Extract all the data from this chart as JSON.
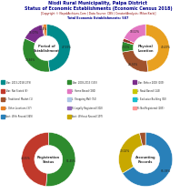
{
  "title1": "Nisdi Rural Municipality, Palpa District",
  "title2": "Status of Economic Establishments (Economic Census 2018)",
  "subtitle": "[Copyright © NepalArchives.Com | Data Source: CBS | Creator/Analysis: Milan Karki]",
  "subtitle2": "Total Economic Establishments: 587",
  "pie1_label": "Period of\nEstablishment",
  "pie1_values": [
    47.93,
    33.86,
    15.07,
    1.02,
    2.12
  ],
  "pie1_colors": [
    "#008B8B",
    "#2e8b2e",
    "#7b2d8b",
    "#c0392b",
    "#e67e22"
  ],
  "pie1_pcts": [
    "47.93%",
    "33.86%",
    "15.07%",
    "1.02%",
    ""
  ],
  "pie1_startangle": 90,
  "pie2_label": "Physical\nLocation",
  "pie2_values": [
    49.43,
    24.36,
    7.3,
    2.39,
    18.52
  ],
  "pie2_colors": [
    "#e8a020",
    "#a0522d",
    "#2e8b2e",
    "#c0392b",
    "#e377c2"
  ],
  "pie2_pcts": [
    "49.43%",
    "24.36%",
    "7.30%",
    "2.39%",
    "18.52%"
  ],
  "pie2_startangle": 90,
  "pie3_label": "Registration\nStatus",
  "pie3_values": [
    51.45,
    48.55
  ],
  "pie3_colors": [
    "#2e8b2e",
    "#c0392b"
  ],
  "pie3_pcts": [
    "51.45%",
    "48.55%"
  ],
  "pie3_startangle": 90,
  "pie4_label": "Accounting\nRecords",
  "pie4_values": [
    66.38,
    30.02,
    3.6
  ],
  "pie4_colors": [
    "#2980b9",
    "#c8a800",
    "#a0522d"
  ],
  "pie4_pcts": [
    "66.38%",
    "30.02%",
    ""
  ],
  "pie4_startangle": 90,
  "legend_rows": [
    [
      [
        "Year: 2013-2018 (279)",
        "#008B8B"
      ],
      [
        "Year: 2003-2013 (193)",
        "#2e8b2e"
      ],
      [
        "Year: Before 2003 (109)",
        "#7b2d8b"
      ]
    ],
    [
      [
        "Year: Not Stated (6)",
        "#c0392b"
      ],
      [
        "L: Home Based (280)",
        "#e377c2"
      ],
      [
        "L: Road Based (143)",
        "#c8c800"
      ]
    ],
    [
      [
        "L: Traditional Market (1)",
        "#a0522d"
      ],
      [
        "L: Shopping Mall (74)",
        "#aec7e8"
      ],
      [
        "L: Exclusive Building (92)",
        "#17becf"
      ]
    ],
    [
      [
        "L: Other Locations (37)",
        "#e67e22"
      ],
      [
        "R: Legally Registered (302)",
        "#9467bd"
      ],
      [
        "R: Not Registered (285)",
        "#ff9896"
      ]
    ],
    [
      [
        "Acct: With Record (369)",
        "#2980b9"
      ],
      [
        "Acct: Without Record (197)",
        "#c8a800"
      ],
      [
        "",
        ""
      ]
    ]
  ],
  "bg_color": "#ffffff",
  "title_color": "#00008B",
  "subtitle_color": "#8B0000",
  "subtitle2_color": "#00008B"
}
